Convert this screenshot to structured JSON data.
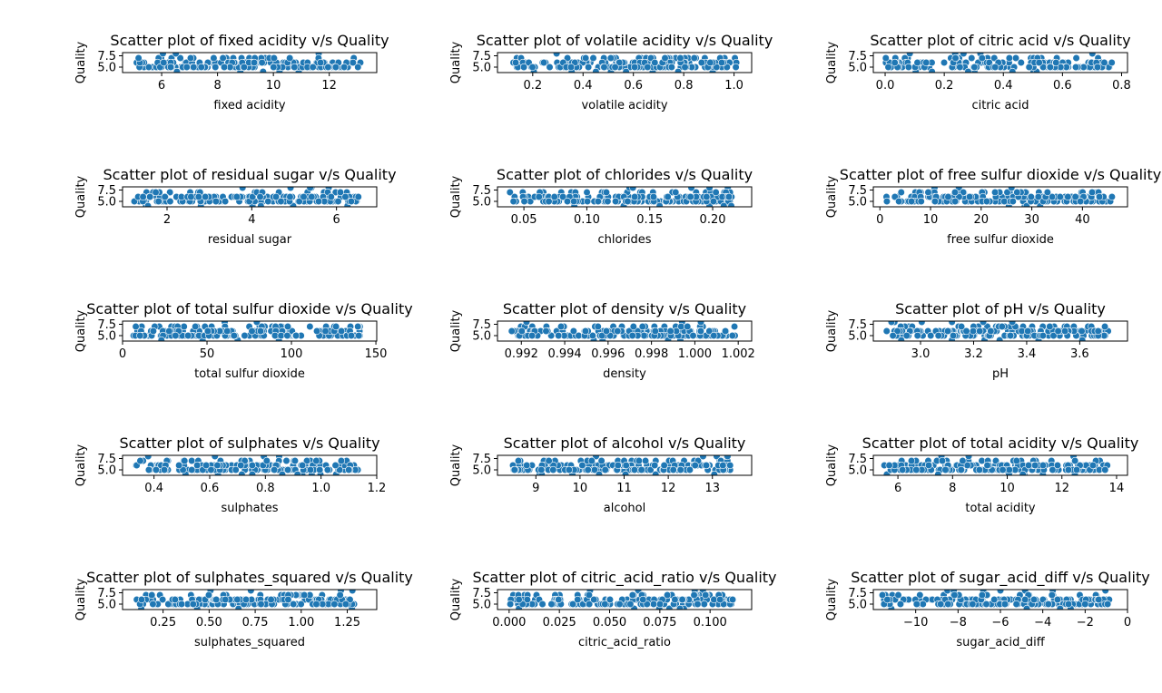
{
  "figure": {
    "background": "#ffffff",
    "point_color": "#1f77b4"
  },
  "chart_data": [
    {
      "type": "scatter",
      "title": "Scatter plot of fixed acidity v/s Quality",
      "xlabel": "fixed acidity",
      "ylabel": "Quality",
      "xlim": [
        4.6,
        13.7
      ],
      "ylim": [
        3.8,
        8.2
      ],
      "xticks": [
        6,
        8,
        10,
        12
      ],
      "xtick_labels": [
        "6",
        "8",
        "10",
        "12"
      ],
      "yticks": [
        5.0,
        7.5
      ],
      "ytick_labels": [
        "5.0",
        "7.5"
      ],
      "x_range": [
        5.0,
        13.4
      ]
    },
    {
      "type": "scatter",
      "title": "Scatter plot of volatile acidity v/s Quality",
      "xlabel": "volatile acidity",
      "ylabel": "Quality",
      "xlim": [
        0.06,
        1.07
      ],
      "ylim": [
        3.8,
        8.2
      ],
      "xticks": [
        0.2,
        0.4,
        0.6,
        0.8,
        1.0
      ],
      "xtick_labels": [
        "0.2",
        "0.4",
        "0.6",
        "0.8",
        "1.0"
      ],
      "yticks": [
        5.0,
        7.5
      ],
      "ytick_labels": [
        "5.0",
        "7.5"
      ],
      "x_range": [
        0.12,
        1.04
      ]
    },
    {
      "type": "scatter",
      "title": "Scatter plot of citric acid v/s Quality",
      "xlabel": "citric acid",
      "ylabel": "Quality",
      "xlim": [
        -0.04,
        0.82
      ],
      "ylim": [
        3.8,
        8.2
      ],
      "xticks": [
        0.0,
        0.2,
        0.4,
        0.6,
        0.8
      ],
      "xtick_labels": [
        "0.0",
        "0.2",
        "0.4",
        "0.6",
        "0.8"
      ],
      "yticks": [
        5.0,
        7.5
      ],
      "ytick_labels": [
        "5.0",
        "7.5"
      ],
      "x_range": [
        0.0,
        0.79
      ]
    },
    {
      "type": "scatter",
      "title": "Scatter plot of residual sugar v/s Quality",
      "xlabel": "residual sugar",
      "ylabel": "Quality",
      "xlim": [
        0.95,
        6.95
      ],
      "ylim": [
        3.8,
        8.2
      ],
      "xticks": [
        2,
        4,
        6
      ],
      "xtick_labels": [
        "2",
        "4",
        "6"
      ],
      "yticks": [
        5.0,
        7.5
      ],
      "ytick_labels": [
        "5.0",
        "7.5"
      ],
      "x_range": [
        1.2,
        6.7
      ]
    },
    {
      "type": "scatter",
      "title": "Scatter plot of chlorides v/s Quality",
      "xlabel": "chlorides",
      "ylabel": "Quality",
      "xlim": [
        0.029,
        0.231
      ],
      "ylim": [
        3.8,
        8.2
      ],
      "xticks": [
        0.05,
        0.1,
        0.15,
        0.2
      ],
      "xtick_labels": [
        "0.05",
        "0.10",
        "0.15",
        "0.20"
      ],
      "yticks": [
        5.0,
        7.5
      ],
      "ytick_labels": [
        "5.0",
        "7.5"
      ],
      "x_range": [
        0.038,
        0.223
      ]
    },
    {
      "type": "scatter",
      "title": "Scatter plot of free sulfur dioxide v/s Quality",
      "xlabel": "free sulfur dioxide",
      "ylabel": "Quality",
      "xlim": [
        -1.3,
        48.9
      ],
      "ylim": [
        3.8,
        8.2
      ],
      "xticks": [
        0,
        10,
        20,
        30,
        40
      ],
      "xtick_labels": [
        "0",
        "10",
        "20",
        "30",
        "40"
      ],
      "yticks": [
        5.0,
        7.5
      ],
      "ytick_labels": [
        "5.0",
        "7.5"
      ],
      "x_range": [
        1,
        47
      ]
    },
    {
      "type": "scatter",
      "title": "Scatter plot of total sulfur dioxide v/s Quality",
      "xlabel": "total sulfur dioxide",
      "ylabel": "Quality",
      "xlim": [
        0,
        150.5
      ],
      "ylim": [
        3.8,
        8.2
      ],
      "xticks": [
        0,
        50,
        100,
        150
      ],
      "xtick_labels": [
        "0",
        "50",
        "100",
        "150"
      ],
      "yticks": [
        5.0,
        7.5
      ],
      "ytick_labels": [
        "5.0",
        "7.5"
      ],
      "x_range": [
        6,
        145
      ]
    },
    {
      "type": "scatter",
      "title": "Scatter plot of density v/s Quality",
      "xlabel": "density",
      "ylabel": "Quality",
      "xlim": [
        0.9909,
        1.00262
      ],
      "ylim": [
        3.8,
        8.2
      ],
      "xticks": [
        0.992,
        0.994,
        0.996,
        0.998,
        1.0,
        1.002
      ],
      "xtick_labels": [
        "0.992",
        "0.994",
        "0.996",
        "0.998",
        "1.000",
        "1.002"
      ],
      "yticks": [
        5.0,
        7.5
      ],
      "ytick_labels": [
        "5.0",
        "7.5"
      ],
      "x_range": [
        0.9915,
        1.0023
      ]
    },
    {
      "type": "scatter",
      "title": "Scatter plot of pH v/s Quality",
      "xlabel": "pH",
      "ylabel": "Quality",
      "xlim": [
        2.822,
        3.78
      ],
      "ylim": [
        3.8,
        8.2
      ],
      "xticks": [
        3.0,
        3.2,
        3.4,
        3.6
      ],
      "xtick_labels": [
        "3.0",
        "3.2",
        "3.4",
        "3.6"
      ],
      "yticks": [
        5.0,
        7.5
      ],
      "ytick_labels": [
        "5.0",
        "7.5"
      ],
      "x_range": [
        2.86,
        3.75
      ]
    },
    {
      "type": "scatter",
      "title": "Scatter plot of sulphates v/s Quality",
      "xlabel": "sulphates",
      "ylabel": "Quality",
      "xlim": [
        0.287,
        1.2
      ],
      "ylim": [
        3.8,
        8.2
      ],
      "xticks": [
        0.4,
        0.6,
        0.8,
        1.0,
        1.2
      ],
      "xtick_labels": [
        "0.4",
        "0.6",
        "0.8",
        "1.0",
        "1.2"
      ],
      "yticks": [
        5.0,
        7.5
      ],
      "ytick_labels": [
        "5.0",
        "7.5"
      ],
      "x_range": [
        0.33,
        1.16
      ]
    },
    {
      "type": "scatter",
      "title": "Scatter plot of alcohol v/s Quality",
      "xlabel": "alcohol",
      "ylabel": "Quality",
      "xlim": [
        8.13,
        13.89
      ],
      "ylim": [
        3.8,
        8.2
      ],
      "xticks": [
        9,
        10,
        11,
        12,
        13
      ],
      "xtick_labels": [
        "9",
        "10",
        "11",
        "12",
        "13"
      ],
      "yticks": [
        5.0,
        7.5
      ],
      "ytick_labels": [
        "5.0",
        "7.5"
      ],
      "x_range": [
        8.4,
        13.6
      ]
    },
    {
      "type": "scatter",
      "title": "Scatter plot of total acidity v/s Quality",
      "xlabel": "total acidity",
      "ylabel": "Quality",
      "xlim": [
        5.1,
        14.4
      ],
      "ylim": [
        3.8,
        8.2
      ],
      "xticks": [
        6,
        8,
        10,
        12,
        14
      ],
      "xtick_labels": [
        "6",
        "8",
        "10",
        "12",
        "14"
      ],
      "yticks": [
        5.0,
        7.5
      ],
      "ytick_labels": [
        "5.0",
        "7.5"
      ],
      "x_range": [
        5.5,
        14.0
      ]
    },
    {
      "type": "scatter",
      "title": "Scatter plot of sulphates_squared v/s Quality",
      "xlabel": "sulphates_squared",
      "ylabel": "Quality",
      "xlim": [
        0.03,
        1.41
      ],
      "ylim": [
        3.8,
        8.2
      ],
      "xticks": [
        0.25,
        0.5,
        0.75,
        1.0,
        1.25
      ],
      "xtick_labels": [
        "0.25",
        "0.50",
        "0.75",
        "1.00",
        "1.25"
      ],
      "yticks": [
        5.0,
        7.5
      ],
      "ytick_labels": [
        "5.0",
        "7.5"
      ],
      "x_range": [
        0.1,
        1.35
      ]
    },
    {
      "type": "scatter",
      "title": "Scatter plot of citric_acid_ratio v/s Quality",
      "xlabel": "citric_acid_ratio",
      "ylabel": "Quality",
      "xlim": [
        -0.0058,
        0.1207
      ],
      "ylim": [
        3.8,
        8.2
      ],
      "xticks": [
        0.0,
        0.025,
        0.05,
        0.075,
        0.1
      ],
      "xtick_labels": [
        "0.000",
        "0.025",
        "0.050",
        "0.075",
        "0.100"
      ],
      "yticks": [
        5.0,
        7.5
      ],
      "ytick_labels": [
        "5.0",
        "7.5"
      ],
      "x_range": [
        0.0,
        0.115
      ]
    },
    {
      "type": "scatter",
      "title": "Scatter plot of sugar_acid_diff v/s Quality",
      "xlabel": "sugar_acid_diff",
      "ylabel": "Quality",
      "xlim": [
        -12.0,
        0.0
      ],
      "ylim": [
        3.8,
        8.2
      ],
      "xticks": [
        -10,
        -8,
        -6,
        -4,
        -2,
        0
      ],
      "xtick_labels": [
        "−10",
        "−8",
        "−6",
        "−4",
        "−2",
        "0"
      ],
      "yticks": [
        5.0,
        7.5
      ],
      "ytick_labels": [
        "5.0",
        "7.5"
      ],
      "x_range": [
        -11.6,
        -0.5
      ]
    }
  ]
}
